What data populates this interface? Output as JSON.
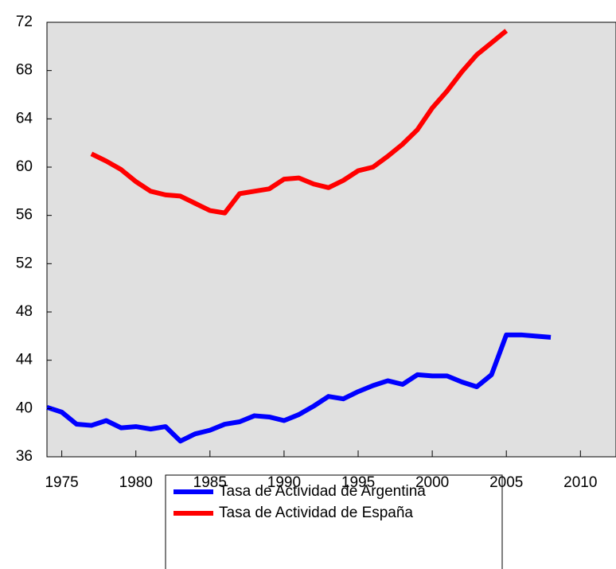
{
  "chart_data": {
    "type": "line",
    "x": [
      1974,
      1975,
      1976,
      1977,
      1978,
      1979,
      1980,
      1981,
      1982,
      1983,
      1984,
      1985,
      1986,
      1987,
      1988,
      1989,
      1990,
      1991,
      1992,
      1993,
      1994,
      1995,
      1996,
      1997,
      1998,
      1999,
      2000,
      2001,
      2002,
      2003,
      2004,
      2005,
      2006,
      2007,
      2008
    ],
    "series": [
      {
        "name": "Tasa de Actividad de Argentina",
        "color": "#0000ff",
        "values": [
          40.1,
          39.7,
          38.7,
          38.6,
          39.0,
          38.4,
          38.5,
          38.3,
          38.5,
          37.3,
          37.9,
          38.2,
          38.7,
          38.9,
          39.4,
          39.3,
          39.0,
          39.5,
          40.2,
          41.0,
          40.8,
          41.4,
          41.9,
          42.3,
          42.0,
          42.8,
          42.7,
          42.7,
          42.2,
          41.8,
          42.8,
          46.1,
          46.1,
          46.0,
          45.9
        ]
      },
      {
        "name": "Tasa de Actividad de España",
        "color": "#ff0000",
        "values": [
          null,
          null,
          null,
          61.1,
          60.5,
          59.8,
          58.8,
          58.0,
          57.7,
          57.6,
          57.0,
          56.4,
          56.2,
          57.8,
          58.0,
          58.2,
          59.0,
          59.1,
          58.6,
          58.3,
          58.9,
          59.7,
          60.0,
          60.9,
          61.9,
          63.1,
          64.9,
          66.3,
          67.9,
          69.3,
          70.3,
          71.3,
          null,
          null,
          null
        ]
      }
    ],
    "xlim": [
      1974,
      2012.4
    ],
    "xticks": [
      1975,
      1980,
      1985,
      1990,
      1995,
      2000,
      2005,
      2010
    ],
    "ylim": [
      36,
      72
    ],
    "yticks": [
      36,
      40,
      44,
      48,
      52,
      56,
      60,
      64,
      68,
      72
    ],
    "background": "#e0e0e0",
    "grid": false
  }
}
